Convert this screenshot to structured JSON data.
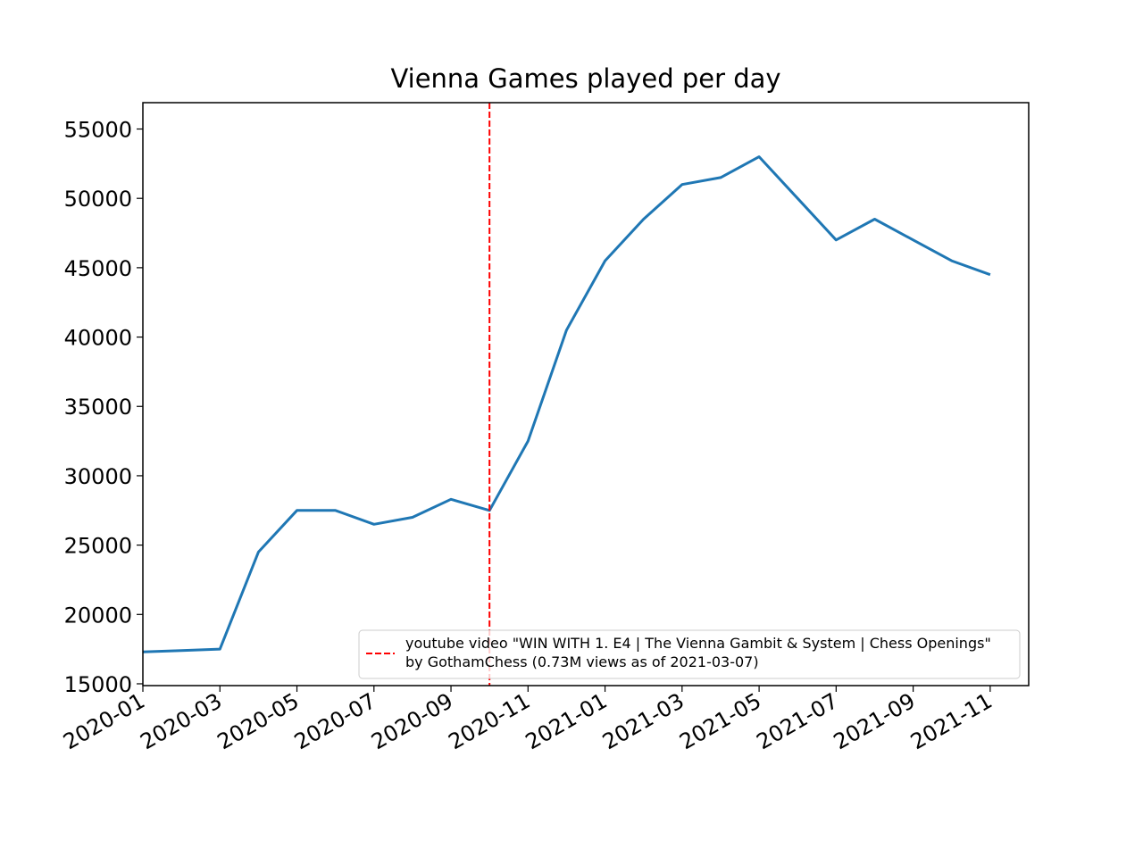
{
  "chart_data": {
    "type": "line",
    "title": "Vienna Games played per day",
    "x": [
      "2020-01",
      "2020-02",
      "2020-03",
      "2020-04",
      "2020-05",
      "2020-06",
      "2020-07",
      "2020-08",
      "2020-09",
      "2020-10",
      "2020-11",
      "2020-12",
      "2021-01",
      "2021-02",
      "2021-03",
      "2021-04",
      "2021-05",
      "2021-06",
      "2021-07",
      "2021-08",
      "2021-09",
      "2021-10",
      "2021-11"
    ],
    "series": [
      {
        "name": "Vienna Games",
        "color": "#1f77b4",
        "values": [
          17300,
          17400,
          17500,
          24500,
          27500,
          27500,
          26500,
          27000,
          28300,
          27500,
          32500,
          40500,
          45500,
          48500,
          51000,
          51500,
          53000,
          50000,
          47000,
          48500,
          47000,
          45500,
          44500
        ]
      }
    ],
    "xlim": [
      "2020-01",
      "2021-12"
    ],
    "xticks": [
      "2020-01",
      "2020-03",
      "2020-05",
      "2020-07",
      "2020-09",
      "2020-11",
      "2021-01",
      "2021-03",
      "2021-05",
      "2021-07",
      "2021-09",
      "2021-11"
    ],
    "ylim": [
      14870,
      56900
    ],
    "yticks": [
      15000,
      20000,
      25000,
      30000,
      35000,
      40000,
      45000,
      50000,
      55000
    ],
    "vline": {
      "x": "2020-10",
      "color": "#ff0000",
      "label": [
        "youtube video \"WIN WITH 1. E4 | The Vienna Gambit & System | Chess Openings\"",
        "by GothamChess (0.73M views as of 2021-03-07)"
      ]
    },
    "legend": "lower right"
  }
}
